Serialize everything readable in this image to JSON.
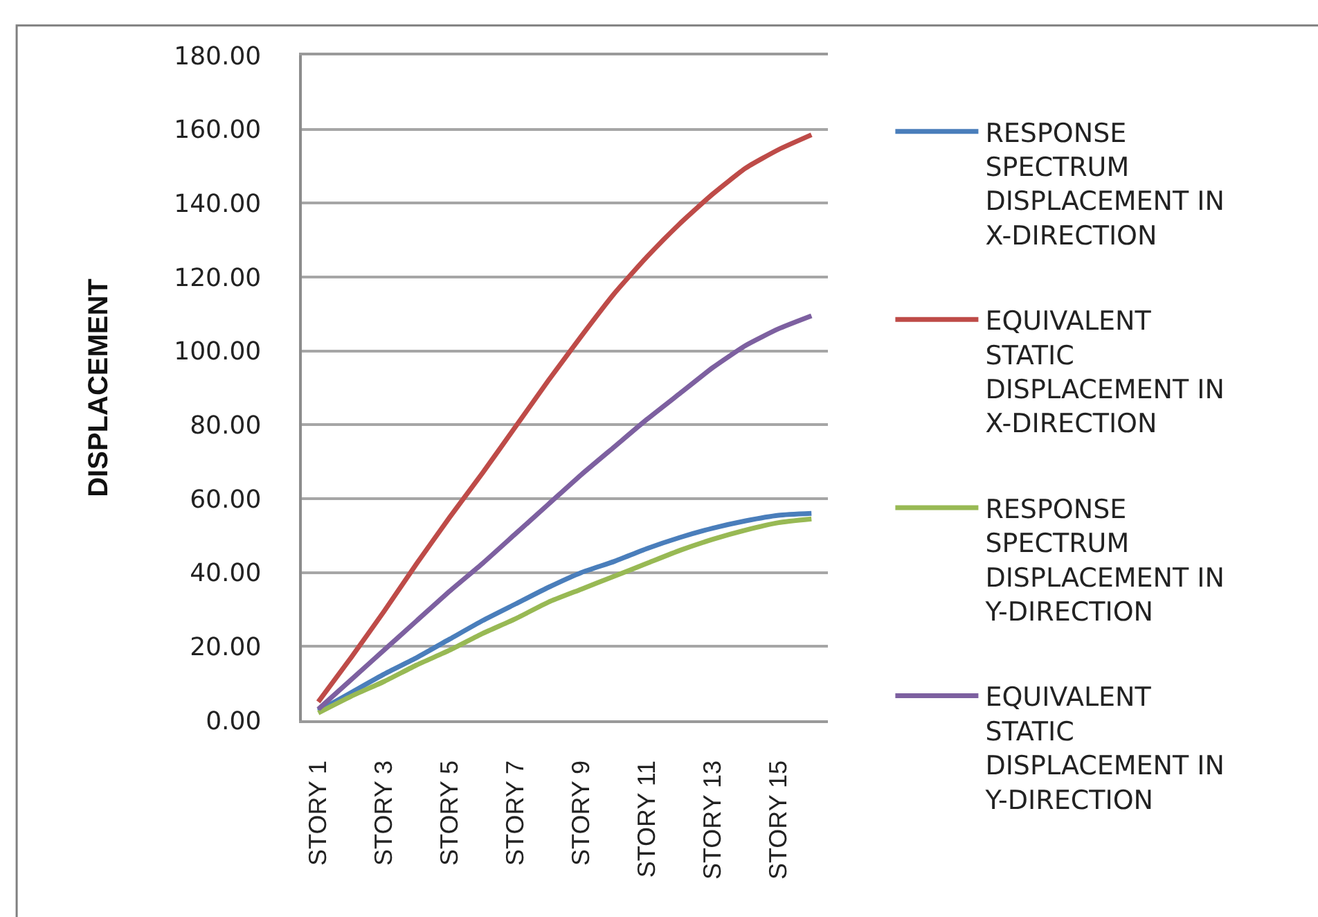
{
  "chart_data": {
    "type": "line",
    "ylabel": "DISPLACEMENT",
    "categories": [
      "STORY 1",
      null,
      "STORY 3",
      null,
      "STORY 5",
      null,
      "STORY 7",
      null,
      "STORY 9",
      null,
      "STORY 11",
      null,
      "STORY 13",
      null,
      "STORY 15",
      null
    ],
    "series": [
      {
        "name": "RESPONSE SPECTRUM DISPLACEMENT IN X-DIRECTION",
        "color": "#4a7ebb",
        "values": [
          2.5,
          7.5,
          12.5,
          17,
          22,
          27,
          31.5,
          36,
          40,
          43,
          46.5,
          49.5,
          52,
          54,
          55.5,
          56
        ]
      },
      {
        "name": "EQUIVALENT STATIC DISPLACEMENT IN X-DIRECTION",
        "color": "#be4b48",
        "values": [
          5,
          17,
          29.5,
          42.5,
          55,
          67,
          79.5,
          92,
          104,
          115.5,
          125.5,
          134.5,
          142.5,
          149.5,
          154.5,
          158.5
        ]
      },
      {
        "name": "RESPONSE SPECTRUM DISPLACEMENT IN Y-DIRECTION",
        "color": "#98b954",
        "values": [
          2,
          6.5,
          10.5,
          15,
          19,
          23.5,
          27.5,
          32,
          35.5,
          39,
          42.5,
          46,
          49,
          51.5,
          53.5,
          54.5
        ]
      },
      {
        "name": "EQUIVALENT STATIC DISPLACEMENT IN Y-DIRECTION",
        "color": "#7d60a0",
        "values": [
          3,
          11,
          19,
          27,
          35,
          42.5,
          50.5,
          58.5,
          66.5,
          74,
          81.5,
          88.5,
          95.5,
          101.5,
          106,
          109.5
        ]
      }
    ],
    "ylim": [
      0,
      180
    ],
    "yticks": [
      {
        "value": 0,
        "label": "0.00"
      },
      {
        "value": 20,
        "label": "20.00"
      },
      {
        "value": 40,
        "label": "40.00"
      },
      {
        "value": 60,
        "label": "60.00"
      },
      {
        "value": 80,
        "label": "80.00"
      },
      {
        "value": 100,
        "label": "100.00"
      },
      {
        "value": 120,
        "label": "120.00"
      },
      {
        "value": 140,
        "label": "140.00"
      },
      {
        "value": 160,
        "label": "160.00"
      },
      {
        "value": 180,
        "label": "180.00"
      }
    ],
    "grid": "y",
    "legend": "right",
    "marker": "none",
    "line_style": "solid"
  }
}
